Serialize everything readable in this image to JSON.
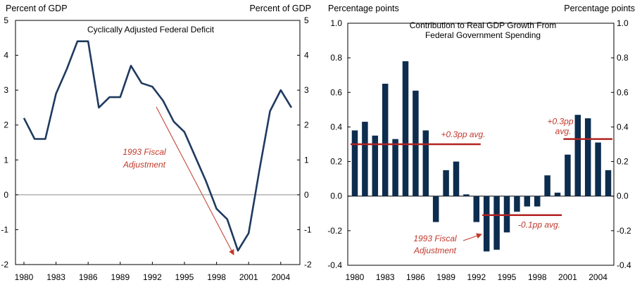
{
  "chart_data": [
    {
      "type": "line",
      "title": "Cyclically Adjusted Federal Deficit",
      "ylabel_left": "Percent of GDP",
      "ylabel_right": "Percent of GDP",
      "ylim": [
        -2,
        5
      ],
      "yticks": [
        "5",
        "4",
        "3",
        "2",
        "1",
        "0",
        "-1",
        "-2"
      ],
      "xlim": [
        1980,
        2005
      ],
      "xticks": [
        "1980",
        "1983",
        "1986",
        "1989",
        "1992",
        "1995",
        "1998",
        "2001",
        "2004"
      ],
      "series": [
        {
          "name": "Cyclically Adjusted Federal Deficit",
          "color": "#1f3a5f",
          "x": [
            1980,
            1981,
            1982,
            1983,
            1984,
            1985,
            1986,
            1987,
            1988,
            1989,
            1990,
            1991,
            1992,
            1993,
            1994,
            1995,
            1996,
            1997,
            1998,
            1999,
            2000,
            2001,
            2002,
            2003,
            2004,
            2005
          ],
          "values": [
            2.2,
            1.6,
            1.6,
            2.9,
            3.6,
            4.4,
            4.4,
            2.5,
            2.8,
            2.8,
            3.7,
            3.2,
            3.1,
            2.7,
            2.1,
            1.8,
            1.1,
            0.4,
            -0.4,
            -0.7,
            -1.6,
            -1.1,
            0.7,
            2.4,
            3.0,
            2.5
          ]
        }
      ],
      "annotations": [
        {
          "text_lines": [
            "1993 Fiscal",
            "Adjustment"
          ],
          "color": "#c0392b"
        }
      ]
    },
    {
      "type": "bar",
      "title_lines": [
        "Contribution  to Real  GDP Growth From",
        "Federal  Government  Spending"
      ],
      "ylabel_left": "Percentage  points",
      "ylabel_right": "Percentage points",
      "ylim": [
        -0.4,
        1.0
      ],
      "yticks": [
        "1.0",
        "0.8",
        "0.6",
        "0.4",
        "0.2",
        "0.0",
        "-0.2",
        "-0.4"
      ],
      "xticks": [
        "1980",
        "1983",
        "1986",
        "1989",
        "1992",
        "1995",
        "1998",
        "2001",
        "2004"
      ],
      "bar_color": "#0d2d4f",
      "categories": [
        1980,
        1981,
        1982,
        1983,
        1984,
        1985,
        1986,
        1987,
        1988,
        1989,
        1990,
        1991,
        1992,
        1993,
        1994,
        1995,
        1996,
        1997,
        1998,
        1999,
        2000,
        2001,
        2002,
        2003,
        2004,
        2005
      ],
      "values": [
        0.38,
        0.43,
        0.35,
        0.65,
        0.33,
        0.78,
        0.61,
        0.38,
        -0.15,
        0.15,
        0.2,
        0.01,
        -0.15,
        -0.32,
        -0.31,
        -0.21,
        -0.09,
        -0.06,
        -0.06,
        0.12,
        0.02,
        0.24,
        0.47,
        0.45,
        0.31,
        0.15
      ],
      "averages": [
        {
          "label": "+0.3pp avg.",
          "value": 0.3,
          "from": 1980,
          "to": 1992
        },
        {
          "label": "-0.1pp avg.",
          "value": -0.11,
          "from": 1993,
          "to": 2000
        },
        {
          "label_lines": [
            "+0.3pp",
            "avg."
          ],
          "value": 0.33,
          "from": 2001,
          "to": 2005
        }
      ],
      "annotations": [
        {
          "text_lines": [
            "1993  Fiscal",
            "Adjustment"
          ],
          "color": "#c0392b"
        }
      ]
    }
  ]
}
